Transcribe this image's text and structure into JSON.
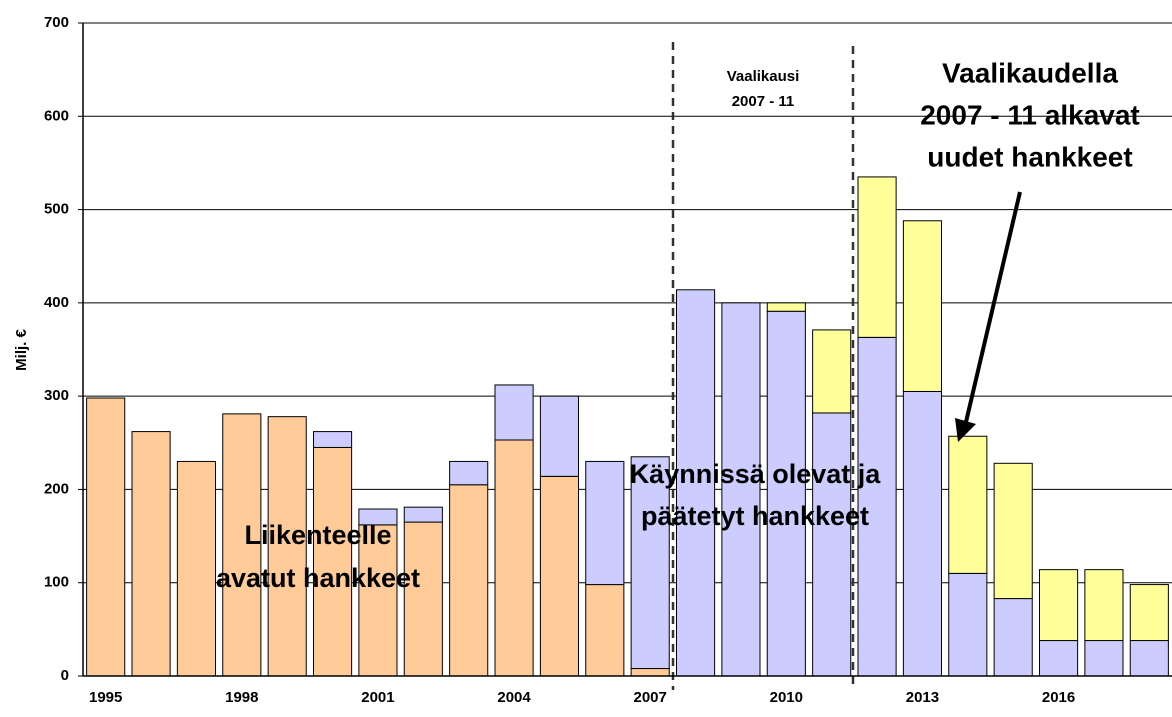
{
  "chart_data": {
    "type": "bar",
    "stacked": true,
    "y_label": "Milj. €",
    "categories": [
      "1995",
      null,
      null,
      "1998",
      null,
      null,
      "2001",
      null,
      null,
      "2004",
      null,
      null,
      "2007",
      null,
      null,
      "2010",
      null,
      null,
      "2013",
      null,
      null,
      "2016",
      null,
      null
    ],
    "series": [
      {
        "name": [
          "Liikenteelle",
          "avatut hankkeet"
        ],
        "color": "#FFCC99",
        "values": [
          298,
          262,
          230,
          281,
          278,
          245,
          162,
          165,
          205,
          253,
          214,
          98,
          8,
          0,
          0,
          0,
          0,
          0,
          0,
          0,
          0,
          0,
          0,
          0
        ]
      },
      {
        "name": [
          "Käynnissä olevat ja",
          "päätetyt hankkeet"
        ],
        "color": "#CCCCFF",
        "values": [
          0,
          0,
          0,
          0,
          0,
          17,
          17,
          16,
          25,
          59,
          86,
          132,
          227,
          414,
          400,
          391,
          282,
          363,
          305,
          110,
          83,
          38,
          38,
          38
        ]
      },
      {
        "name": [
          "Vaalikaudella",
          "2007 - 11 alkavat",
          "uudet hankkeet"
        ],
        "color": "#FFFF99",
        "values": [
          0,
          0,
          0,
          0,
          0,
          0,
          0,
          0,
          0,
          0,
          0,
          0,
          0,
          0,
          0,
          9,
          89,
          172,
          183,
          147,
          145,
          76,
          76,
          60
        ]
      }
    ],
    "annotation": [
      "Vaalikausi",
      "2007 - 11"
    ],
    "ylim": [
      0,
      700
    ],
    "yticks": [
      0,
      100,
      200,
      300,
      400,
      500,
      600,
      700
    ],
    "grid": true
  }
}
